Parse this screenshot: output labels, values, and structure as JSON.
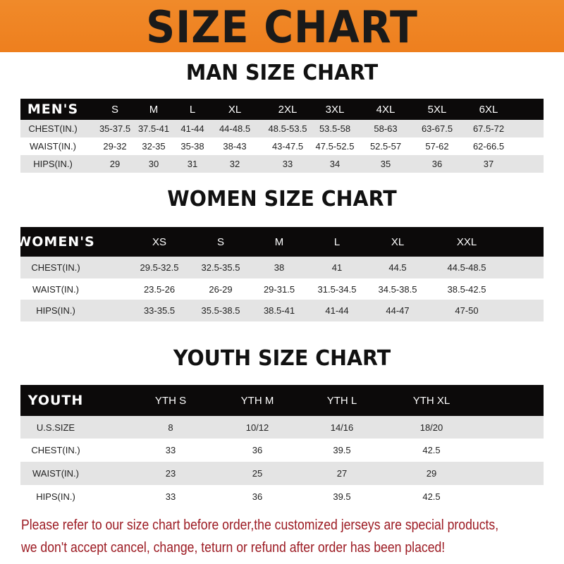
{
  "banner": {
    "title": "SIZE CHART",
    "color": "#ee7f1e"
  },
  "men": {
    "heading": "MAN SIZE CHART",
    "header": [
      "MEN'S",
      "S",
      "M",
      "L",
      "XL",
      "2XL",
      "3XL",
      "4XL",
      "5XL",
      "6XL"
    ],
    "rows": [
      [
        "CHEST(IN.)",
        "35-37.5",
        "37.5-41",
        "41-44",
        "44-48.5",
        "48.5-53.5",
        "53.5-58",
        "58-63",
        "63-67.5",
        "67.5-72"
      ],
      [
        "WAIST(IN.)",
        "29-32",
        "32-35",
        "35-38",
        "38-43",
        "43-47.5",
        "47.5-52.5",
        "52.5-57",
        "57-62",
        "62-66.5"
      ],
      [
        "HIPS(IN.)",
        "29",
        "30",
        "31",
        "32",
        "33",
        "34",
        "35",
        "36",
        "37"
      ]
    ]
  },
  "women": {
    "heading": "WOMEN SIZE CHART",
    "header": [
      "WOMEN'S",
      "XS",
      "S",
      "M",
      "L",
      "XL",
      "XXL"
    ],
    "rows": [
      [
        "CHEST(IN.)",
        "29.5-32.5",
        "32.5-35.5",
        "38",
        "41",
        "44.5",
        "44.5-48.5"
      ],
      [
        "WAIST(IN.)",
        "23.5-26",
        "26-29",
        "29-31.5",
        "31.5-34.5",
        "34.5-38.5",
        "38.5-42.5"
      ],
      [
        "HIPS(IN.)",
        "33-35.5",
        "35.5-38.5",
        "38.5-41",
        "41-44",
        "44-47",
        "47-50"
      ]
    ]
  },
  "youth": {
    "heading": "YOUTH SIZE CHART",
    "header": [
      "YOUTH",
      "YTH S",
      "YTH M",
      "YTH L",
      "YTH XL"
    ],
    "rows": [
      [
        "U.S.SIZE",
        "8",
        "10/12",
        "14/16",
        "18/20"
      ],
      [
        "CHEST(IN.)",
        "33",
        "36",
        "39.5",
        "42.5"
      ],
      [
        "WAIST(IN.)",
        "23",
        "25",
        "27",
        "29"
      ],
      [
        "HIPS(IN.)",
        "33",
        "36",
        "39.5",
        "42.5"
      ]
    ]
  },
  "note": {
    "line1": "Please refer to our size chart before order,the customized jerseys are special products,",
    "line2": "we don't accept cancel, change, teturn or refund after order has been placed!",
    "color": "#9c1a22"
  }
}
